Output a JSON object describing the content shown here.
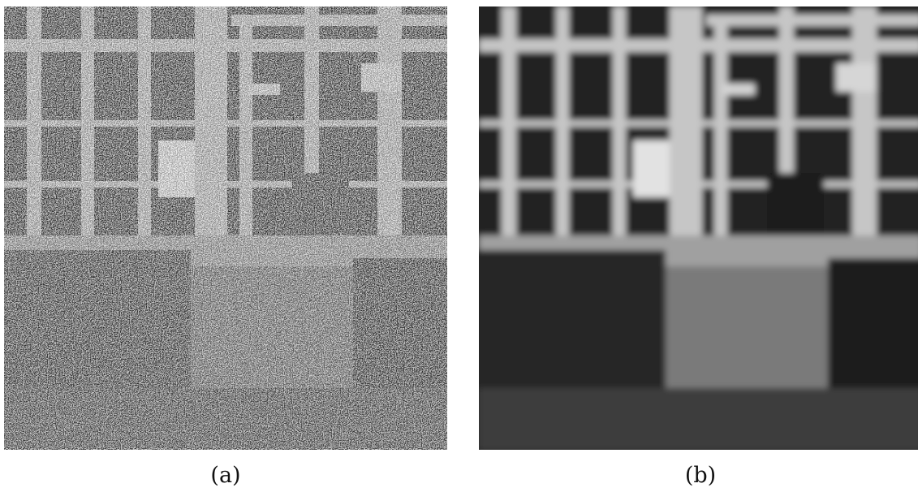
{
  "figure": {
    "panels": [
      {
        "id": "a",
        "caption": "(a)",
        "noise_fill": "#808080"
      },
      {
        "id": "b",
        "caption": "(b)",
        "noise_fill": "none"
      }
    ]
  }
}
